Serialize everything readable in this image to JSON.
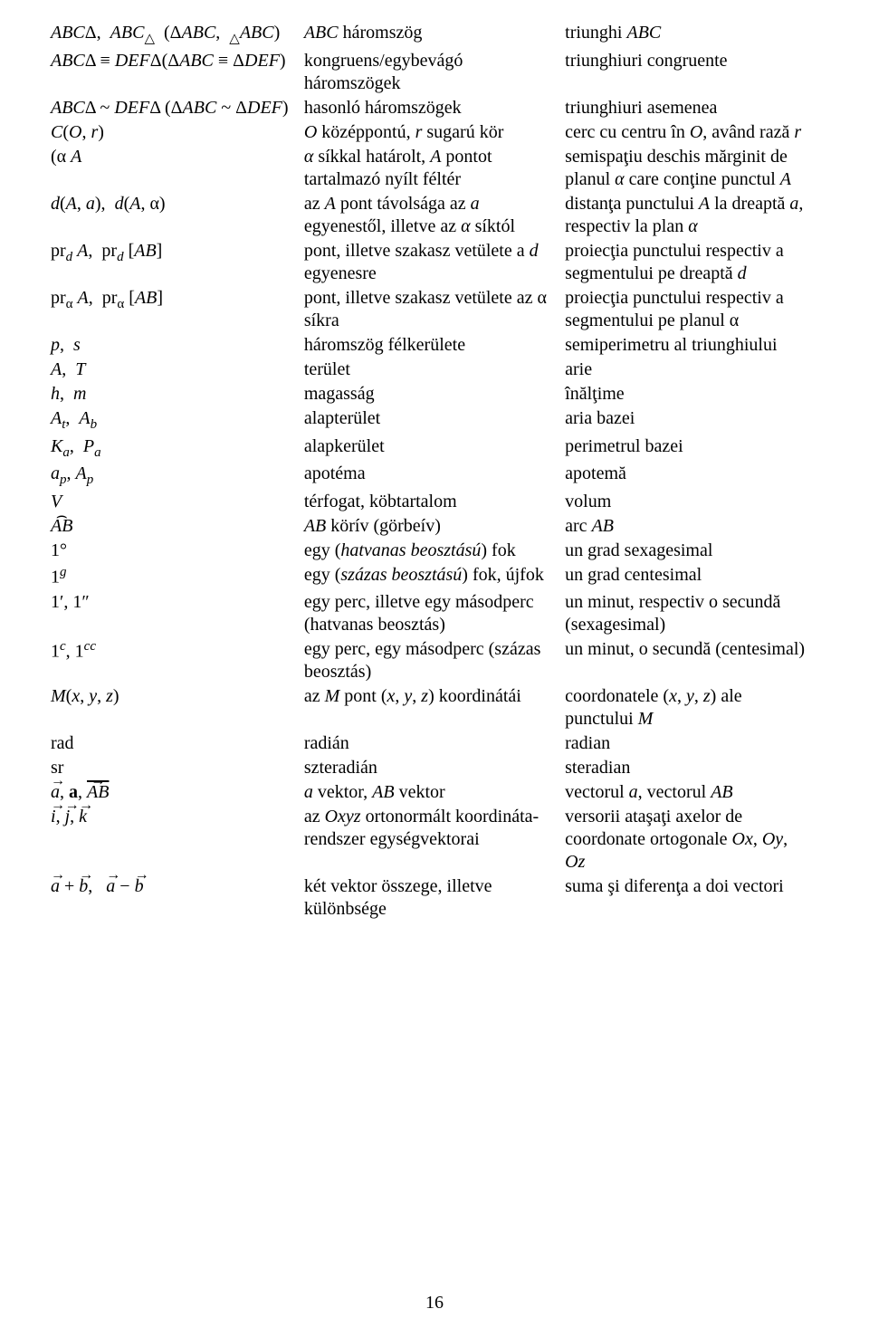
{
  "pageNumber": "16",
  "rows": [
    {
      "c1_html": "<span class='it'>ABC</span>Δ,&nbsp;&nbsp;<span class='it'>ABC</span><sub>△</sub>&nbsp;&nbsp;(Δ<span class='it'>ABC</span>,&nbsp;&nbsp;<sub>△</sub><span class='it'>ABC</span>)",
      "c2_html": "<span class='it'>ABC</span> háromszög",
      "c3_html": "triunghi <span class='it'>ABC</span>"
    },
    {
      "c1_html": "<span class='it'>ABC</span>Δ ≡ <span class='it'>DEF</span>Δ(Δ<span class='it'>ABC</span> ≡ Δ<span class='it'>DEF</span>)",
      "c2_html": "kongruens/egybevágó háromszögek",
      "c3_html": "triunghiuri congruente"
    },
    {
      "c1_html": "<span class='it'>ABC</span>Δ ~ <span class='it'>DEF</span>Δ (Δ<span class='it'>ABC</span> ~ Δ<span class='it'>DEF</span>)",
      "c2_html": "hasonló háromszögek",
      "c3_html": "triunghiuri asemenea"
    },
    {
      "c1_html": "<span class='script'>C</span>(<span class='it'>O</span>, <span class='it'>r</span>)",
      "c2_html": "<span class='it'>O</span> középpontú, <span class='it'>r</span> sugarú kör",
      "c3_html": "cerc cu centru în <span class='it'>O</span>, având rază <span class='it'>r</span>"
    },
    {
      "c1_html": "(α&nbsp;<span class='it'>A</span>",
      "c2_html": "<span class='it'>α</span> síkkal határolt, <span class='it'>A</span> pontot tartalmazó nyílt féltér",
      "c3_html": "semispaţiu deschis mărginit de planul <span class='it'>α</span> care conţine punctul <span class='it'>A</span>"
    },
    {
      "c1_html": "<span class='it'>d</span>(<span class='it'>A</span>, <span class='it'>a</span>),&nbsp;&nbsp;<span class='it'>d</span>(<span class='it'>A</span>, α)",
      "c2_html": "az <span class='it'>A</span> pont távolsága az <span class='it'>a</span> egyenestől, illetve az <span class='it'>α</span> síktól",
      "c3_html": "distanţa punctului <span class='it'>A</span> la dreaptă <span class='it'>a</span>, respectiv la plan <span class='it'>α</span>"
    },
    {
      "c1_html": "pr<sub><span class='it'>d</span></sub>&nbsp;<span class='it'>A</span>,&nbsp;&nbsp;pr<sub><span class='it'>d</span></sub>&nbsp;[<span class='it'>AB</span>]",
      "c2_html": "pont, illetve szakasz vetülete a <span class='it'>d</span> egyenesre",
      "c3_html": "proiecţia punctului respectiv a segmentului pe dreaptă <span class='it'>d</span>"
    },
    {
      "c1_html": "pr<sub>α</sub>&nbsp;<span class='it'>A</span>,&nbsp;&nbsp;pr<sub>α</sub>&nbsp;[<span class='it'>AB</span>]",
      "c2_html": "pont, illetve szakasz vetülete az α síkra",
      "c3_html": "proiecţia punctului respectiv a segmentului pe planul α"
    },
    {
      "c1_html": "<span class='it'>p</span>,&nbsp;&nbsp;<span class='it'>s</span>",
      "c2_html": "háromszög félkerülete",
      "c3_html": "semiperimetru al triunghiului"
    },
    {
      "c1_html": "<span class='it'>A</span>,&nbsp;&nbsp;<span class='it'>T</span>",
      "c2_html": "terület",
      "c3_html": "arie"
    },
    {
      "c1_html": "<span class='it'>h</span>,&nbsp;&nbsp;<span class='it'>m</span>",
      "c2_html": "magasság",
      "c3_html": "înălţime"
    },
    {
      "c1_html": "<span class='it'>A<sub>t</sub></span>,&nbsp;&nbsp;<span class='it'>A<sub>b</sub></span>",
      "c2_html": "alapterület",
      "c3_html": "aria bazei"
    },
    {
      "c1_html": "<span class='it'>K<sub>a</sub></span>,&nbsp;&nbsp;<span class='it'>P<sub>a</sub></span>",
      "c2_html": "alapkerület",
      "c3_html": "perimetrul bazei"
    },
    {
      "c1_html": "<span class='it'>a<sub>p</sub></span>, <span class='it'>A<sub>p</sub></span>",
      "c2_html": "apotéma",
      "c3_html": "apotemă"
    },
    {
      "c1_html": "<span class='it'>V</span>",
      "c2_html": "térfogat, köbtartalom",
      "c3_html": "volum"
    },
    {
      "c1_html": "<span class='arcover it'>AB</span>",
      "c2_html": "<span class='it'>AB</span> körív (görbeív)",
      "c3_html": "arc <span class='it'>AB</span>"
    },
    {
      "c1_html": "1°",
      "c2_html": "egy (<span class='it'>hatvanas beosztású</span>) fok",
      "c3_html": "un grad sexagesimal"
    },
    {
      "c1_html": "1<sup><span class='it'>g</span></sup>",
      "c2_html": "egy (<span class='it'>százas beosztású</span>) fok, újfok",
      "c3_html": "un grad centesimal"
    },
    {
      "c1_html": "1′, 1″",
      "c2_html": "egy perc, illetve egy másodperc (hatvanas beosztás)",
      "c3_html": "un minut, respectiv o secundă (sexagesimal)"
    },
    {
      "c1_html": "1<sup><span class='it'>c</span></sup>, 1<sup><span class='it'>cc</span></sup>",
      "c2_html": "egy perc, egy másodperc (százas beosztás)",
      "c3_html": "un minut, o secundă (centesimal)"
    },
    {
      "c1_html": "<span class='it'>M</span>(<span class='it'>x</span>, <span class='it'>y</span>, <span class='it'>z</span>)",
      "c2_html": "az <span class='it'>M</span> pont (<span class='it'>x</span>, <span class='it'>y</span>, <span class='it'>z</span>) koordinátái",
      "c3_html": "coordonatele (<span class='it'>x</span>, <span class='it'>y</span>, <span class='it'>z</span>) ale punctului <span class='it'>M</span>"
    },
    {
      "c1_html": "rad",
      "c2_html": "radián",
      "c3_html": "radian"
    },
    {
      "c1_html": "sr",
      "c2_html": "szteradián",
      "c3_html": "steradian"
    },
    {
      "c1_html": "<span class='arrowover it'>a</span>, <b>a</b>, <span class='arrowover it barover'>AB</span>",
      "c2_html": "<span class='it'>a</span> vektor, <span class='it'>AB</span> vektor",
      "c3_html": "vectorul <span class='it'>a</span>, vectorul <span class='it'>AB</span>"
    },
    {
      "c1_html": "<span class='arrowover it'>i</span>, <span class='arrowover it'>j</span>, <span class='arrowover it'>k</span>",
      "c2_html": "az <span class='it'>Oxyz</span> ortonormált koordináta-rendszer egységvektorai",
      "c3_html": "versorii ataşaţi axelor de coordonate ortogonale <span class='it'>Ox</span>, <span class='it'>Oy</span>, <span class='it'>Oz</span>"
    },
    {
      "c1_html": "<span class='arrowover it'>a</span> + <span class='arrowover it'>b</span>,&nbsp;&nbsp;&nbsp;<span class='arrowover it'>a</span> − <span class='arrowover it'>b</span>",
      "c2_html": "két vektor összege, illetve különbsége",
      "c3_html": "suma şi diferenţa a doi vectori"
    }
  ]
}
